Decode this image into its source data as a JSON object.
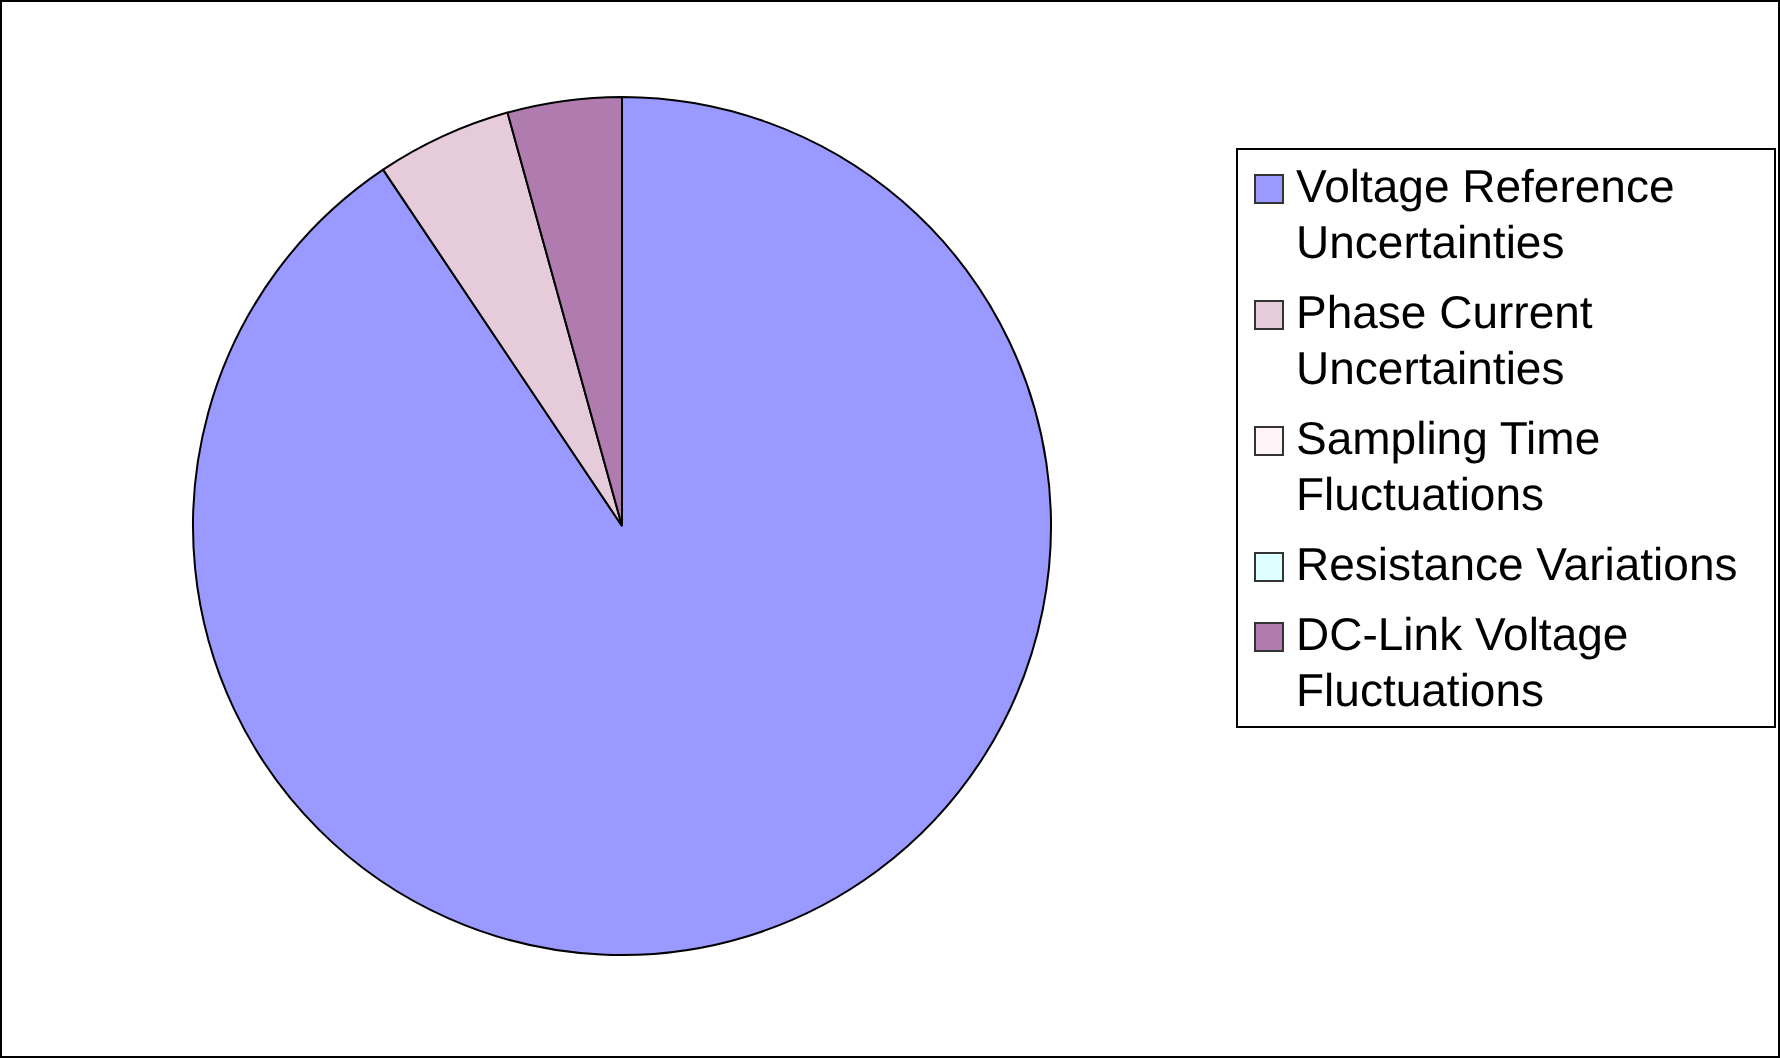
{
  "chart_data": {
    "type": "pie",
    "categories": [
      "Voltage Reference Uncertainties",
      "Phase Current Uncertainties",
      "Sampling Time Fluctuations",
      "Resistance Variations",
      "DC-Link Voltage Fluctuations"
    ],
    "values": [
      90.6,
      5.1,
      0,
      0,
      4.3
    ],
    "colors": [
      "#9999ff",
      "#e6ccdb",
      "#fff5f8",
      "#ddffff",
      "#b07cb0"
    ],
    "legend": "right"
  }
}
